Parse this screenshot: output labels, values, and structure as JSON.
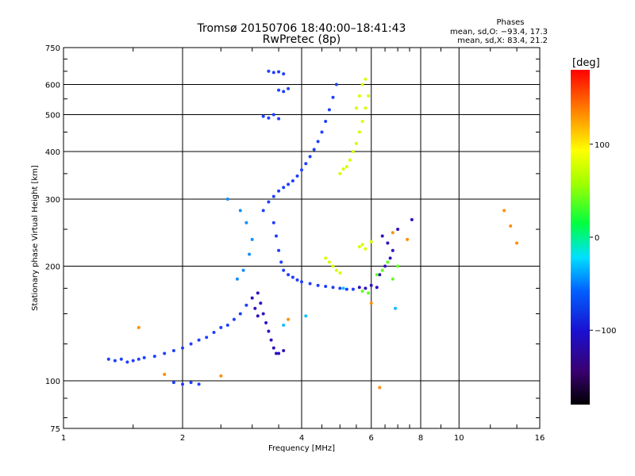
{
  "chart_data": {
    "type": "scatter",
    "title": "Tromsø 20150706 18:40:00–18:41:43",
    "subtitle": "RwPretec (8p)",
    "xlabel": "Frequency [MHz]",
    "ylabel": "Stationary phase Virtual Height [km]",
    "xscale": "log",
    "yscale": "log",
    "xlim": [
      1,
      16
    ],
    "ylim": [
      75,
      750
    ],
    "xticks": [
      1,
      2,
      4,
      6,
      8,
      10,
      16
    ],
    "xtick_labels": [
      "1",
      "2",
      "4",
      "6",
      "8",
      "10",
      "16"
    ],
    "yticks": [
      75,
      100,
      200,
      300,
      400,
      500,
      600,
      750
    ],
    "ytick_labels": [
      "75",
      "100",
      "200",
      "300",
      "400",
      "500",
      "600",
      "750"
    ],
    "grid": true,
    "legend_title": "Phases",
    "legend_lines": [
      "mean, sd,O: −93.4, 17.3",
      "mean, sd,X:  83.4, 21.2"
    ],
    "colorbar": {
      "label": "[deg]",
      "range": [
        -180,
        180
      ],
      "ticks": [
        100,
        0,
        -100
      ],
      "tick_labels": [
        "100",
        "0",
        "−100"
      ],
      "colormap": "rainbow"
    },
    "series": [
      {
        "phase_deg": -110,
        "color": "#1f3fff",
        "points": [
          [
            1.3,
            114
          ],
          [
            1.35,
            113
          ],
          [
            1.4,
            114
          ],
          [
            1.45,
            112
          ],
          [
            1.5,
            113
          ],
          [
            1.55,
            114
          ],
          [
            1.6,
            115
          ],
          [
            1.7,
            116
          ],
          [
            1.8,
            118
          ],
          [
            1.9,
            120
          ],
          [
            2.0,
            122
          ],
          [
            2.1,
            125
          ],
          [
            2.2,
            128
          ],
          [
            2.3,
            130
          ],
          [
            2.4,
            134
          ],
          [
            2.5,
            138
          ],
          [
            2.6,
            140
          ],
          [
            2.7,
            145
          ],
          [
            2.8,
            150
          ],
          [
            2.9,
            158
          ],
          [
            1.9,
            99
          ],
          [
            2.0,
            98
          ],
          [
            2.1,
            99
          ],
          [
            2.2,
            98
          ],
          [
            3.2,
            280
          ],
          [
            3.3,
            295
          ],
          [
            3.4,
            305
          ],
          [
            3.5,
            315
          ],
          [
            3.6,
            322
          ],
          [
            3.7,
            328
          ],
          [
            3.8,
            335
          ],
          [
            3.9,
            345
          ],
          [
            4.0,
            358
          ],
          [
            4.1,
            372
          ],
          [
            4.2,
            388
          ],
          [
            4.3,
            405
          ],
          [
            4.4,
            425
          ],
          [
            4.5,
            450
          ],
          [
            4.6,
            480
          ],
          [
            4.7,
            515
          ],
          [
            4.8,
            555
          ],
          [
            4.9,
            600
          ],
          [
            3.3,
            650
          ],
          [
            3.4,
            645
          ],
          [
            3.5,
            648
          ],
          [
            3.6,
            640
          ],
          [
            3.2,
            495
          ],
          [
            3.3,
            490
          ],
          [
            3.4,
            500
          ],
          [
            3.5,
            488
          ],
          [
            3.5,
            580
          ],
          [
            3.6,
            575
          ],
          [
            3.7,
            585
          ],
          [
            3.4,
            260
          ],
          [
            3.45,
            240
          ],
          [
            3.5,
            220
          ],
          [
            3.55,
            205
          ],
          [
            3.6,
            195
          ],
          [
            3.7,
            190
          ],
          [
            3.8,
            187
          ],
          [
            3.9,
            184
          ],
          [
            4.0,
            182
          ],
          [
            4.2,
            180
          ],
          [
            4.4,
            178
          ],
          [
            4.6,
            177
          ],
          [
            4.8,
            176
          ],
          [
            5.0,
            175
          ],
          [
            5.2,
            174
          ],
          [
            5.4,
            174
          ]
        ]
      },
      {
        "phase_deg": -95,
        "color": "#3010c0",
        "points": [
          [
            3.1,
            170
          ],
          [
            3.15,
            160
          ],
          [
            3.2,
            150
          ],
          [
            3.25,
            142
          ],
          [
            3.3,
            135
          ],
          [
            3.35,
            128
          ],
          [
            3.4,
            122
          ],
          [
            3.45,
            118
          ],
          [
            3.5,
            118
          ],
          [
            3.6,
            120
          ],
          [
            3.0,
            165
          ],
          [
            3.05,
            155
          ],
          [
            3.1,
            148
          ],
          [
            5.6,
            176
          ],
          [
            5.8,
            175
          ],
          [
            6.0,
            178
          ],
          [
            6.2,
            176
          ],
          [
            6.3,
            190
          ],
          [
            6.5,
            200
          ],
          [
            6.7,
            210
          ],
          [
            6.4,
            240
          ],
          [
            6.6,
            230
          ],
          [
            6.8,
            220
          ],
          [
            7.0,
            250
          ],
          [
            7.6,
            265
          ]
        ]
      },
      {
        "phase_deg": 95,
        "color": "#d6ff00",
        "points": [
          [
            5.4,
            400
          ],
          [
            5.5,
            420
          ],
          [
            5.6,
            450
          ],
          [
            5.7,
            480
          ],
          [
            5.8,
            520
          ],
          [
            5.9,
            560
          ],
          [
            5.8,
            620
          ],
          [
            5.7,
            600
          ],
          [
            5.6,
            560
          ],
          [
            5.5,
            520
          ],
          [
            5.3,
            380
          ],
          [
            5.2,
            365
          ],
          [
            5.1,
            360
          ],
          [
            5.0,
            350
          ],
          [
            4.6,
            210
          ],
          [
            4.7,
            205
          ],
          [
            4.8,
            200
          ],
          [
            4.9,
            195
          ],
          [
            5.0,
            192
          ],
          [
            5.6,
            225
          ],
          [
            5.7,
            228
          ],
          [
            5.8,
            222
          ],
          [
            6.0,
            232
          ]
        ]
      },
      {
        "phase_deg": 40,
        "color": "#60ff20",
        "points": [
          [
            6.2,
            190
          ],
          [
            6.4,
            195
          ],
          [
            6.6,
            205
          ],
          [
            6.8,
            185
          ],
          [
            7.0,
            200
          ],
          [
            5.9,
            170
          ],
          [
            5.7,
            172
          ]
        ]
      },
      {
        "phase_deg": -60,
        "color": "#1090ff",
        "points": [
          [
            2.6,
            300
          ],
          [
            2.8,
            280
          ],
          [
            2.9,
            260
          ],
          [
            3.0,
            235
          ],
          [
            2.95,
            215
          ],
          [
            2.85,
            195
          ],
          [
            2.75,
            185
          ]
        ]
      },
      {
        "phase_deg": 130,
        "color": "#ff9000",
        "points": [
          [
            1.55,
            138
          ],
          [
            1.8,
            104
          ],
          [
            2.5,
            103
          ],
          [
            3.7,
            145
          ],
          [
            6.3,
            96
          ],
          [
            6.0,
            160
          ],
          [
            6.8,
            245
          ],
          [
            7.4,
            235
          ],
          [
            13.0,
            280
          ],
          [
            13.5,
            255
          ],
          [
            14.0,
            230
          ]
        ]
      },
      {
        "phase_deg": -40,
        "color": "#10c0ff",
        "points": [
          [
            3.6,
            140
          ],
          [
            4.1,
            148
          ],
          [
            5.1,
            175
          ],
          [
            6.9,
            155
          ]
        ]
      }
    ]
  }
}
